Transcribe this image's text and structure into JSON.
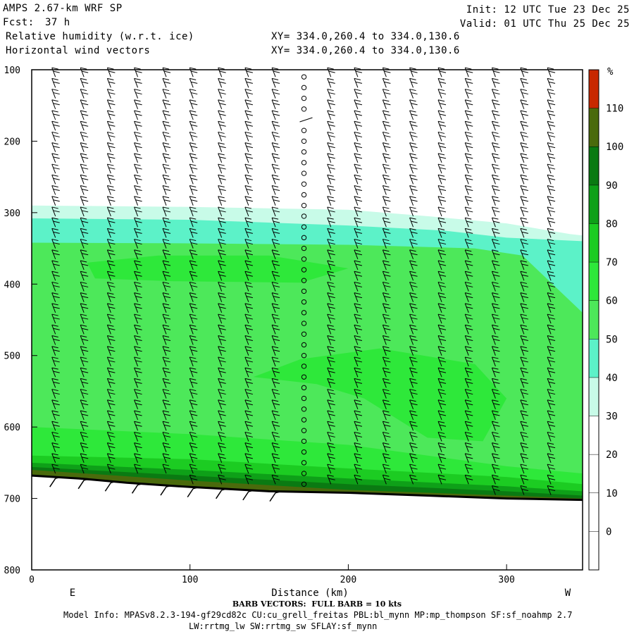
{
  "header": {
    "model_title": "AMPS 2.67-km WRF SP",
    "fcst_label": "Fcst:",
    "fcst_value": "37 h",
    "field1": "Relative humidity (w.r.t. ice)",
    "field2": "Horizontal wind vectors",
    "init": "Init: 12 UTC Tue 23 Dec 25",
    "valid": "Valid: 01 UTC Thu 25 Dec 25",
    "xy1": "XY= 334.0,260.4 to 334.0,130.6",
    "xy2": "XY= 334.0,260.4 to 334.0,130.6"
  },
  "footer": {
    "barb_note": "BARB VECTORS:  FULL BARB = 10 kts",
    "model_info": "Model Info: MPASv8.2.3-194-gf29cd82c CU:cu_grell_freitas PBL:bl_mynn MP:mp_thompson SF:sf_noahmp 2.7",
    "model_info2": "LW:rrtmg_lw SW:rrtmg_sw SFLAY:sf_mynn"
  },
  "chart_data": {
    "type": "heatmap",
    "title": "Relative humidity (w.r.t. ice)",
    "xlabel": "Distance (km)",
    "ylabel": "",
    "xlim": [
      0,
      348
    ],
    "ylim": [
      100,
      800
    ],
    "y_inverted": true,
    "x_ticks": [
      0,
      100,
      200,
      300
    ],
    "y_ticks": [
      100,
      200,
      300,
      400,
      500,
      600,
      700,
      800
    ],
    "end_labels": {
      "left": "E",
      "right": "W"
    },
    "colorbar": {
      "unit": "%",
      "levels": [
        0,
        10,
        20,
        30,
        40,
        50,
        60,
        70,
        80,
        90,
        100,
        110
      ],
      "colors": [
        "#ffffff",
        "#ffffff",
        "#ffffff",
        "#ffffff",
        "#c8fbe8",
        "#5cf2c8",
        "#4de85a",
        "#2ee83a",
        "#1ccc22",
        "#0ea018",
        "#0a7a12",
        "#4a6a0c",
        "#c82800"
      ]
    },
    "layers": [
      {
        "label": "30-40",
        "color": "#c8fbe8",
        "top": [
          [
            0,
            290
          ],
          [
            100,
            292
          ],
          [
            200,
            296
          ],
          [
            250,
            305
          ],
          [
            300,
            315
          ],
          [
            340,
            330
          ],
          [
            348,
            332
          ]
        ]
      },
      {
        "label": "40-50",
        "color": "#5cf2c8",
        "top": [
          [
            0,
            308
          ],
          [
            100,
            310
          ],
          [
            200,
            318
          ],
          [
            260,
            325
          ],
          [
            300,
            335
          ],
          [
            348,
            340
          ]
        ]
      },
      {
        "label": "60-70",
        "color": "#4de85a",
        "top": [
          [
            0,
            342
          ],
          [
            100,
            343
          ],
          [
            200,
            345
          ],
          [
            280,
            350
          ],
          [
            310,
            360
          ],
          [
            348,
            440
          ]
        ]
      },
      {
        "label": "70-80",
        "color": "#2ee83a",
        "top": [
          [
            0,
            600
          ],
          [
            100,
            610
          ],
          [
            200,
            625
          ],
          [
            300,
            655
          ],
          [
            348,
            665
          ]
        ]
      },
      {
        "label": "80-90",
        "color": "#1ccc22",
        "top": [
          [
            0,
            640
          ],
          [
            100,
            645
          ],
          [
            200,
            658
          ],
          [
            300,
            670
          ],
          [
            348,
            680
          ]
        ]
      },
      {
        "label": "90-100",
        "color": "#0ea018",
        "top": [
          [
            0,
            650
          ],
          [
            100,
            660
          ],
          [
            200,
            672
          ],
          [
            300,
            683
          ],
          [
            348,
            690
          ]
        ]
      },
      {
        "label": "100-110",
        "color": "#0a7a12",
        "top": [
          [
            0,
            656
          ],
          [
            100,
            668
          ],
          [
            200,
            680
          ],
          [
            300,
            690
          ],
          [
            348,
            696
          ]
        ]
      },
      {
        "label": "110+",
        "color": "#4a6a0c",
        "top": [
          [
            0,
            660
          ],
          [
            100,
            675
          ],
          [
            200,
            688
          ],
          [
            300,
            696
          ],
          [
            348,
            700
          ]
        ]
      }
    ],
    "blobs": [
      {
        "label": "70-80",
        "color": "#2ee83a",
        "points": [
          [
            35,
            370
          ],
          [
            80,
            360
          ],
          [
            150,
            360
          ],
          [
            200,
            378
          ],
          [
            170,
            398
          ],
          [
            90,
            396
          ],
          [
            40,
            392
          ]
        ]
      },
      {
        "label": "70-80",
        "color": "#2ee83a",
        "points": [
          [
            140,
            530
          ],
          [
            170,
            505
          ],
          [
            220,
            490
          ],
          [
            280,
            512
          ],
          [
            300,
            560
          ],
          [
            285,
            620
          ],
          [
            250,
            615
          ],
          [
            210,
            560
          ],
          [
            180,
            540
          ]
        ]
      }
    ],
    "terrain": [
      [
        0,
        668
      ],
      [
        30,
        672
      ],
      [
        60,
        678
      ],
      [
        100,
        684
      ],
      [
        150,
        690
      ],
      [
        200,
        692
      ],
      [
        250,
        696
      ],
      [
        300,
        700
      ],
      [
        348,
        702
      ]
    ],
    "barb_columns": {
      "x": [
        15,
        33,
        50,
        67,
        85,
        102,
        120,
        137,
        154,
        172,
        189,
        206,
        224,
        241,
        259,
        276,
        293,
        311,
        328
      ],
      "calm_x": 172,
      "pressure_step": 15
    }
  }
}
